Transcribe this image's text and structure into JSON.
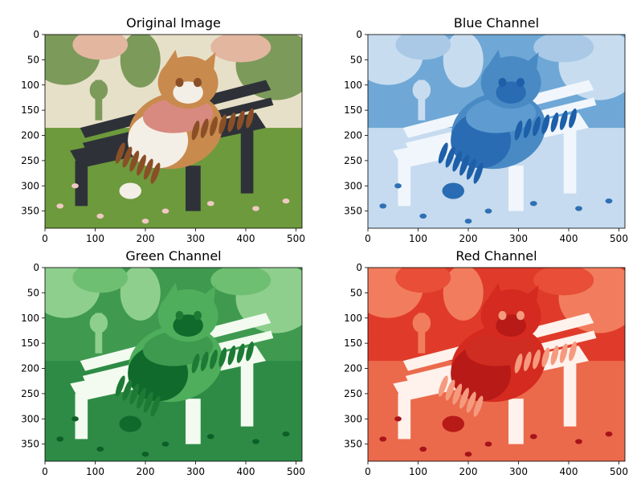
{
  "chart_data": [
    {
      "type": "image",
      "title": "Original Image",
      "colormap": "rgb",
      "xticks": [
        0,
        100,
        200,
        300,
        400,
        500
      ],
      "yticks": [
        0,
        50,
        100,
        150,
        200,
        250,
        300,
        350
      ],
      "xlim": [
        0,
        512
      ],
      "ylim": [
        384,
        0
      ],
      "grid": false,
      "content": "cartoon-cat-on-bench"
    },
    {
      "type": "image",
      "title": "Blue Channel",
      "colormap": "Blues",
      "xticks": [
        0,
        100,
        200,
        300,
        400,
        500
      ],
      "yticks": [
        0,
        50,
        100,
        150,
        200,
        250,
        300,
        350
      ],
      "xlim": [
        0,
        512
      ],
      "ylim": [
        384,
        0
      ],
      "grid": false,
      "content": "cartoon-cat-on-bench"
    },
    {
      "type": "image",
      "title": "Green Channel",
      "colormap": "Greens",
      "xticks": [
        0,
        100,
        200,
        300,
        400,
        500
      ],
      "yticks": [
        0,
        50,
        100,
        150,
        200,
        250,
        300,
        350
      ],
      "xlim": [
        0,
        512
      ],
      "ylim": [
        384,
        0
      ],
      "grid": false,
      "content": "cartoon-cat-on-bench"
    },
    {
      "type": "image",
      "title": "Red Channel",
      "colormap": "Reds",
      "xticks": [
        0,
        100,
        200,
        300,
        400,
        500
      ],
      "yticks": [
        0,
        50,
        100,
        150,
        200,
        250,
        300,
        350
      ],
      "xlim": [
        0,
        512
      ],
      "ylim": [
        384,
        0
      ],
      "grid": false,
      "content": "cartoon-cat-on-bench"
    }
  ],
  "palettes": {
    "rgb": {
      "sky": "#e7e0c8",
      "trees": "#7c9a5a",
      "blossom": "#e3b6a0",
      "grass": "#6d9a3c",
      "bench": "#2e3238",
      "fur": "#c98a4e",
      "stripe": "#8a4f27",
      "belly": "#f4efe6",
      "shirt": "#d88a80",
      "flower": "#f1c9c4"
    },
    "Blues": {
      "sky": "#6fa8d6",
      "trees": "#c8dcf0",
      "blossom": "#a9c9e6",
      "grass": "#c6dbef",
      "bench": "#f1f6fc",
      "fur": "#4a8ac4",
      "stripe": "#1d5fa8",
      "belly": "#2a6cb3",
      "shirt": "#5d9bd0",
      "flower": "#2f70b4"
    },
    "Greens": {
      "sky": "#3f9a50",
      "trees": "#8fcf8e",
      "blossom": "#6fbf72",
      "grass": "#2e8b45",
      "bench": "#f3fbf0",
      "fur": "#4fae5c",
      "stripe": "#1c7a35",
      "belly": "#0f6a2c",
      "shirt": "#3d9a4f",
      "flower": "#0b5f27"
    },
    "Reds": {
      "sky": "#e03b2a",
      "trees": "#f27d5e",
      "blossom": "#e84e38",
      "grass": "#eb6a4c",
      "bench": "#fff1eb",
      "fur": "#d52a1f",
      "stripe": "#f59a7e",
      "belly": "#b71a17",
      "shirt": "#cf2c22",
      "flower": "#a8131a"
    }
  }
}
